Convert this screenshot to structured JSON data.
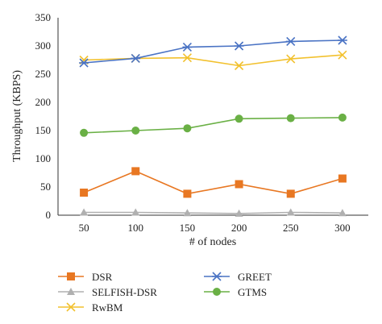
{
  "chart_data": {
    "type": "line",
    "xlabel": "# of nodes",
    "ylabel": "Throughput (KBPS)",
    "x": [
      50,
      100,
      150,
      200,
      250,
      300
    ],
    "xlim": [
      25,
      325
    ],
    "ylim": [
      0,
      350
    ],
    "yticks": [
      0,
      50,
      100,
      150,
      200,
      250,
      300,
      350
    ],
    "grid": false,
    "legend_position": "bottom",
    "series": [
      {
        "name": "DSR",
        "color": "#e87722",
        "marker": "square",
        "values": [
          40,
          78,
          38,
          55,
          38,
          65
        ]
      },
      {
        "name": "SELFISH-DSR",
        "color": "#b0b0b0",
        "marker": "triangle",
        "values": [
          5,
          5,
          4,
          3,
          5,
          4
        ]
      },
      {
        "name": "RwBM",
        "color": "#f2c12e",
        "marker": "x",
        "values": [
          275,
          278,
          279,
          265,
          277,
          284
        ]
      },
      {
        "name": "GREET",
        "color": "#4a73c4",
        "marker": "star",
        "values": [
          270,
          278,
          298,
          300,
          308,
          310
        ]
      },
      {
        "name": "GTMS",
        "color": "#6ab045",
        "marker": "circle",
        "values": [
          146,
          150,
          154,
          171,
          172,
          173
        ]
      }
    ]
  }
}
